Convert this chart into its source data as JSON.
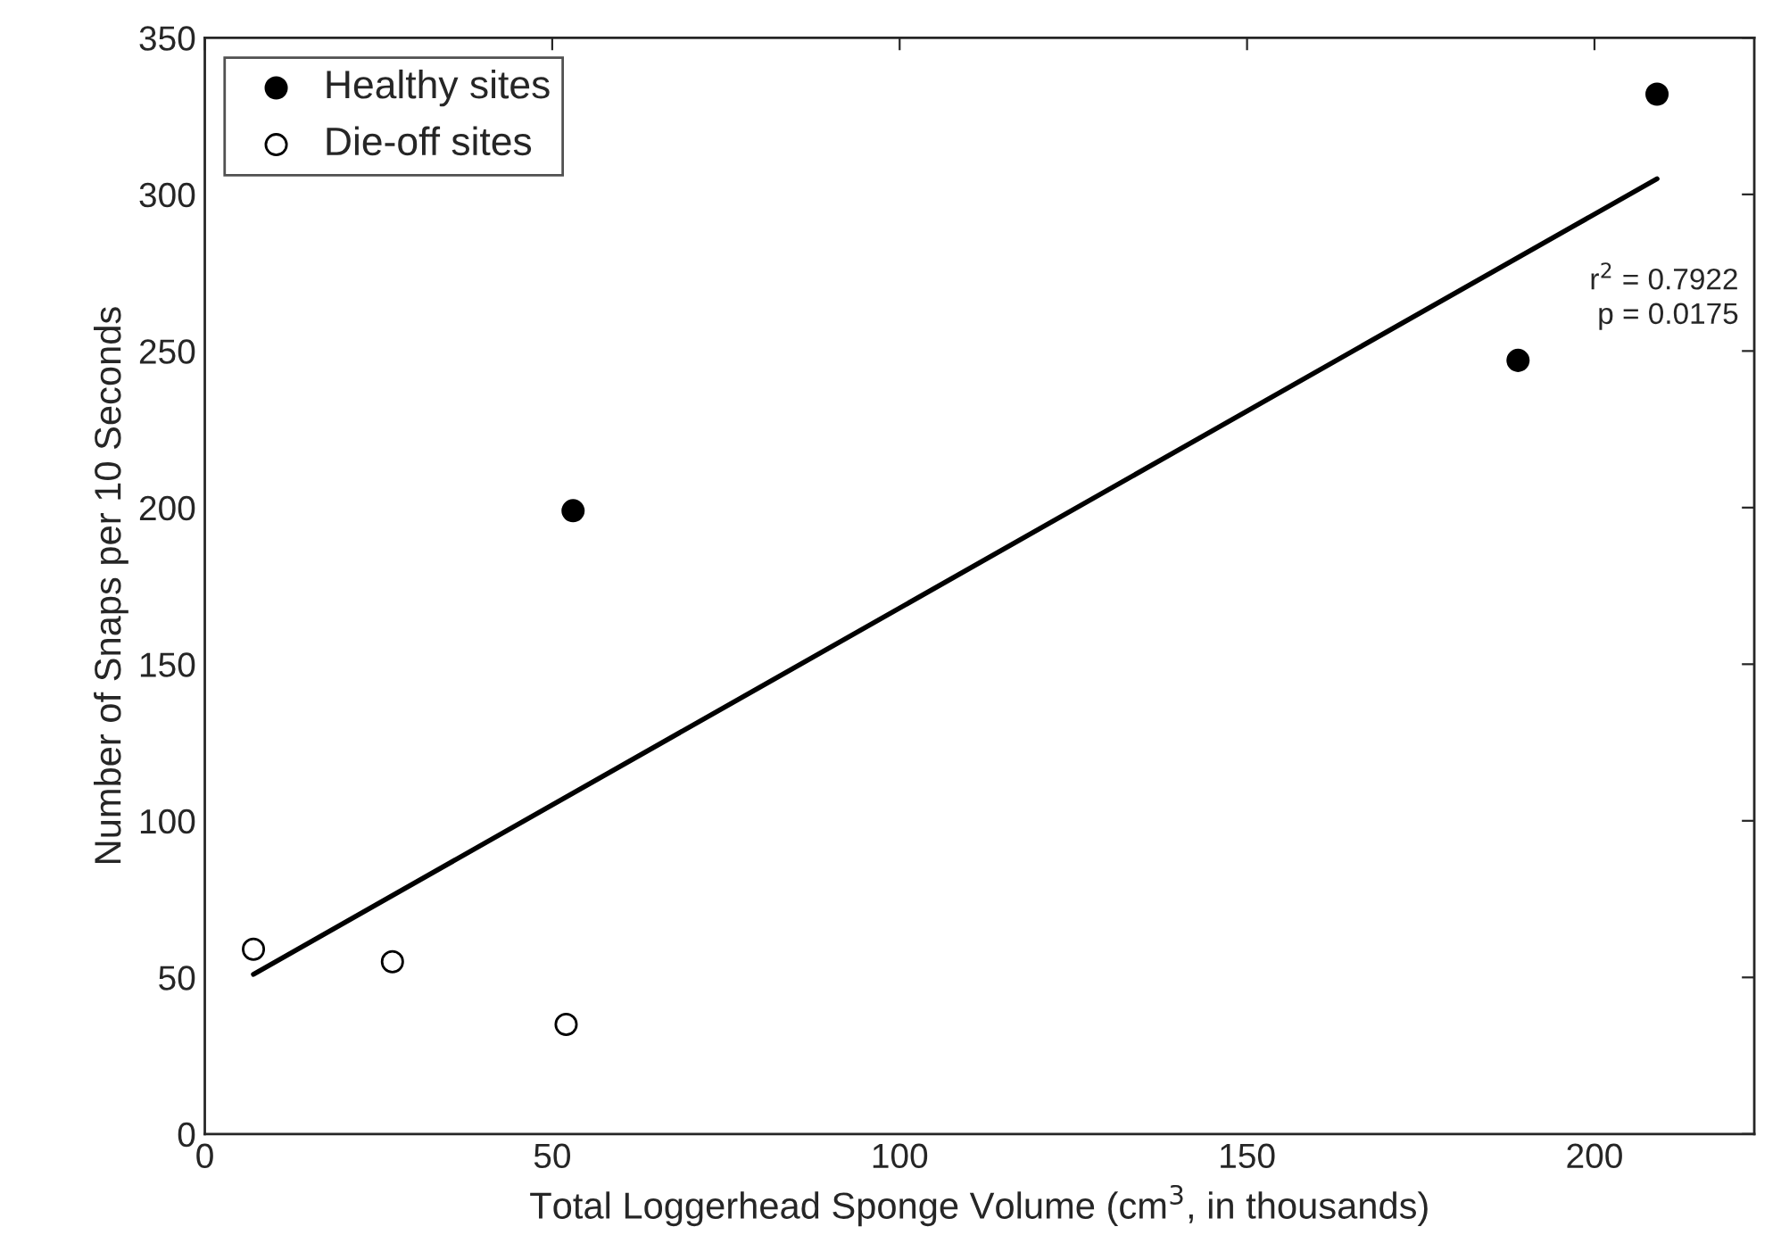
{
  "chart_data": {
    "type": "scatter",
    "xlabel": "Total Loggerhead Sponge Volume (cm$^{3}$, in thousands)",
    "ylabel": "Number of Snaps per 10 Seconds",
    "series": [
      {
        "name": "Healthy sites",
        "color": "#000000",
        "x": [
          53,
          189,
          209
        ],
        "values": [
          199,
          247,
          332
        ]
      },
      {
        "name": "Die-off sites",
        "color": "#ffffff",
        "x": [
          7,
          27,
          52
        ],
        "values": [
          59,
          55,
          35
        ]
      },
      {
        "type": "line",
        "marker": "none",
        "color": "#000000",
        "x": [
          7,
          209
        ],
        "values": [
          51,
          305
        ]
      }
    ],
    "annotations": [
      "r$^{2}$ = 0.7922\np = 0.0175"
    ],
    "xlim": [
      0,
      223
    ],
    "xticks": [
      0,
      50,
      100,
      150,
      200
    ],
    "ylim": [
      0,
      350
    ],
    "yticks": [
      0,
      50,
      100,
      150,
      200,
      250,
      300,
      350
    ],
    "grid": false,
    "legend": "top left",
    "marker": "circle"
  }
}
